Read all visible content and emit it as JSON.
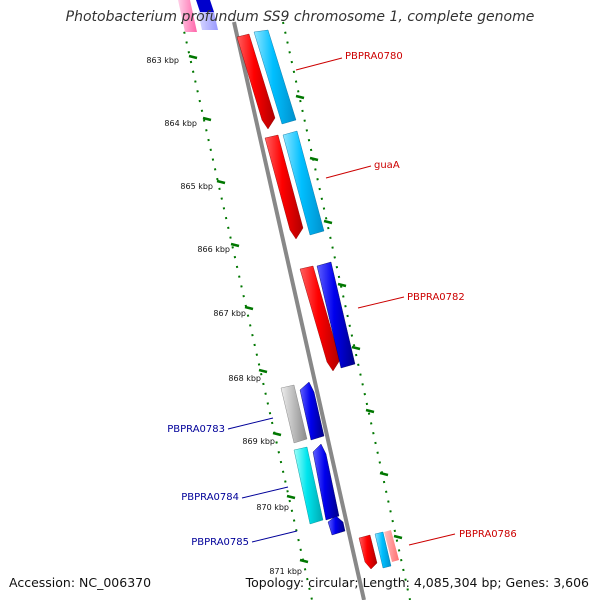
{
  "title": "Photobacterium profundum SS9 chromosome 1, complete genome",
  "footer": {
    "accession": "Accession: NC_006370",
    "summary": "Topology: circular; Length: 4,085,304 bp; Genes: 3,606"
  },
  "ruler": [
    {
      "label": "863 kbp",
      "kbp": 863
    },
    {
      "label": "864 kbp",
      "kbp": 864
    },
    {
      "label": "865 kbp",
      "kbp": 865
    },
    {
      "label": "866 kbp",
      "kbp": 866
    },
    {
      "label": "867 kbp",
      "kbp": 867
    },
    {
      "label": "868 kbp",
      "kbp": 868
    },
    {
      "label": "869 kbp",
      "kbp": 869
    },
    {
      "label": "870 kbp",
      "kbp": 870
    },
    {
      "label": "871 kbp",
      "kbp": 871
    }
  ],
  "gene_labels": [
    {
      "text": "PBPRA0780",
      "strand": "forward",
      "color": "#cc0000"
    },
    {
      "text": "guaA",
      "strand": "forward",
      "color": "#cc0000"
    },
    {
      "text": "PBPRA0782",
      "strand": "forward",
      "color": "#cc0000"
    },
    {
      "text": "PBPRA0783",
      "strand": "reverse",
      "color": "#000099"
    },
    {
      "text": "PBPRA0784",
      "strand": "reverse",
      "color": "#000099"
    },
    {
      "text": "PBPRA0785",
      "strand": "reverse",
      "color": "#000099"
    },
    {
      "text": "PBPRA0786",
      "strand": "forward",
      "color": "#cc0000"
    }
  ],
  "colors": {
    "forward_gene": "#ff0000",
    "forward_cds": "#00bfff",
    "reverse_gene": "#0000ee",
    "reverse_cds": "#00e5ee",
    "pseudo": "#c0c0c0",
    "backbone": "#888888",
    "ruler_tick": "#007700"
  }
}
